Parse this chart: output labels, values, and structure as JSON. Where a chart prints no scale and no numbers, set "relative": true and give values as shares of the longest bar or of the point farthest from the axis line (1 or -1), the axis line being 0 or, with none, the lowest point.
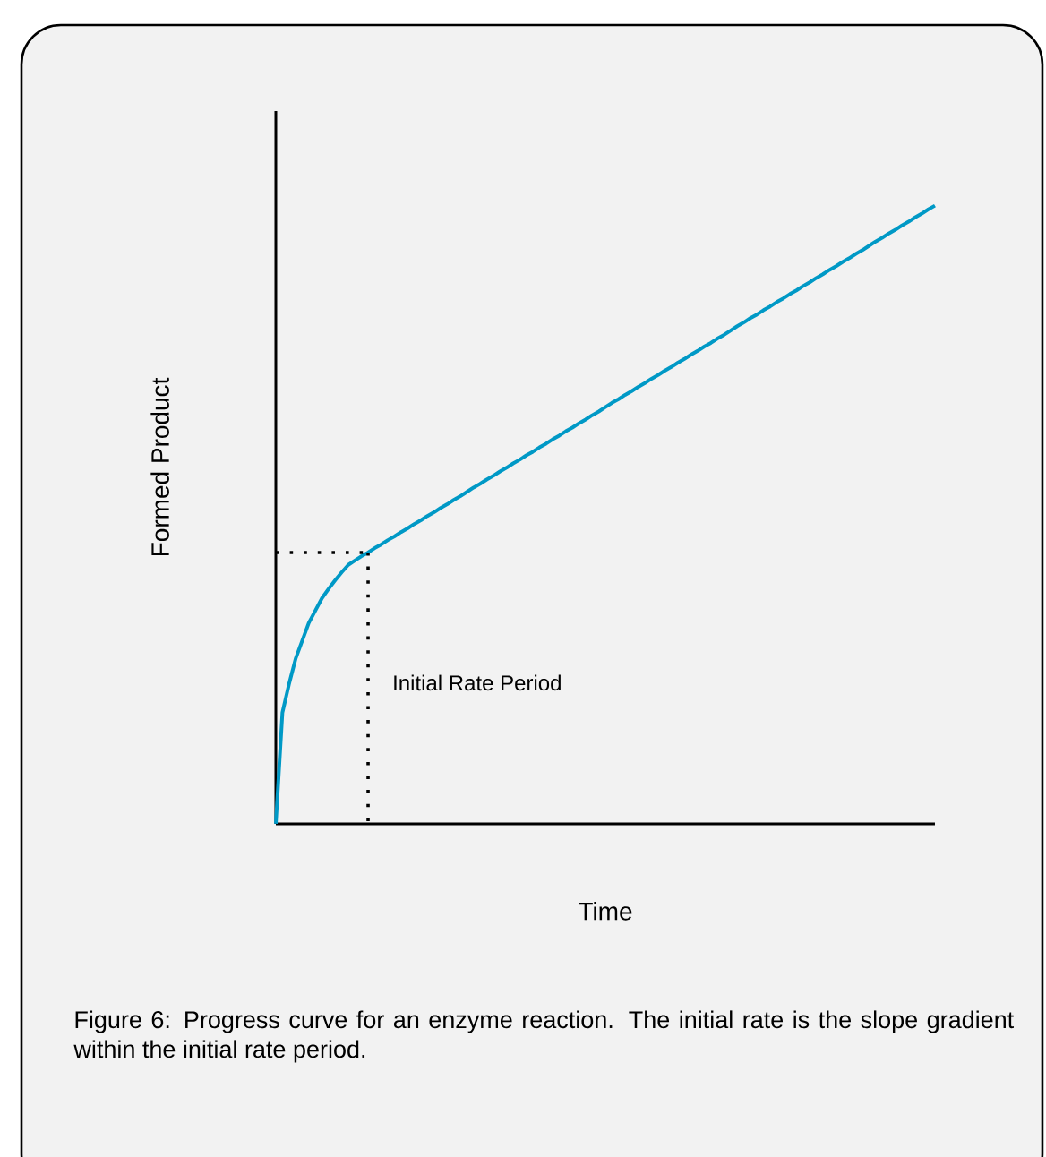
{
  "chart_data": {
    "type": "line",
    "relative": true,
    "xlabel": "Time",
    "ylabel": "Formed Product",
    "categories": [
      null,
      null,
      null,
      null,
      null,
      null,
      null,
      null,
      null,
      null,
      null,
      null,
      null,
      null,
      null,
      null,
      null,
      null,
      null,
      null,
      null,
      null,
      null,
      null,
      null,
      null,
      null,
      null,
      null,
      null,
      null,
      null,
      null,
      null,
      null,
      null,
      null,
      null,
      null,
      null,
      null,
      null,
      null,
      null,
      null,
      null,
      null,
      null,
      null,
      null,
      null,
      null,
      null,
      null,
      null,
      null,
      null,
      null,
      null,
      null,
      null,
      null,
      null,
      null,
      null,
      null,
      null,
      null,
      null,
      null,
      null,
      null,
      null,
      null,
      null,
      null,
      null,
      null,
      null,
      null,
      null,
      null,
      null,
      null,
      null,
      null,
      null,
      null,
      null,
      null,
      null,
      null,
      null,
      null,
      null,
      null,
      null,
      null,
      null,
      null,
      null
    ],
    "series": [
      {
        "color": "#0099c6",
        "values": [
          0,
          0.18,
          0.226,
          0.267,
          0.296,
          0.325,
          0.345,
          0.365,
          0.38,
          0.394,
          0.407,
          0.419,
          0.426,
          0.433,
          0.439,
          0.446,
          0.452,
          0.459,
          0.465,
          0.472,
          0.478,
          0.485,
          0.491,
          0.498,
          0.504,
          0.511,
          0.517,
          0.524,
          0.53,
          0.537,
          0.544,
          0.55,
          0.557,
          0.563,
          0.57,
          0.576,
          0.583,
          0.589,
          0.596,
          0.602,
          0.609,
          0.615,
          0.622,
          0.628,
          0.635,
          0.641,
          0.648,
          0.654,
          0.661,
          0.667,
          0.674,
          0.681,
          0.687,
          0.694,
          0.7,
          0.707,
          0.713,
          0.72,
          0.726,
          0.733,
          0.739,
          0.746,
          0.752,
          0.759,
          0.765,
          0.772,
          0.778,
          0.785,
          0.791,
          0.798,
          0.805,
          0.811,
          0.818,
          0.824,
          0.831,
          0.837,
          0.844,
          0.85,
          0.857,
          0.863,
          0.87,
          0.876,
          0.883,
          0.889,
          0.896,
          0.902,
          0.909,
          0.915,
          0.922,
          0.928,
          0.935,
          0.942,
          0.948,
          0.955,
          0.961,
          0.968,
          0.974,
          0.981,
          0.987,
          0.994,
          1.0
        ]
      }
    ],
    "ref_lines": [
      {
        "axis": "y",
        "value": 0.439,
        "line_style": "dotted"
      }
    ],
    "annotations": [
      "Initial Rate Period",
      "Figure 6: Progress curve for an enzyme reaction. The initial rate is the slope gradient within the initial rate period."
    ],
    "marker": "none",
    "line_style": "solid"
  }
}
